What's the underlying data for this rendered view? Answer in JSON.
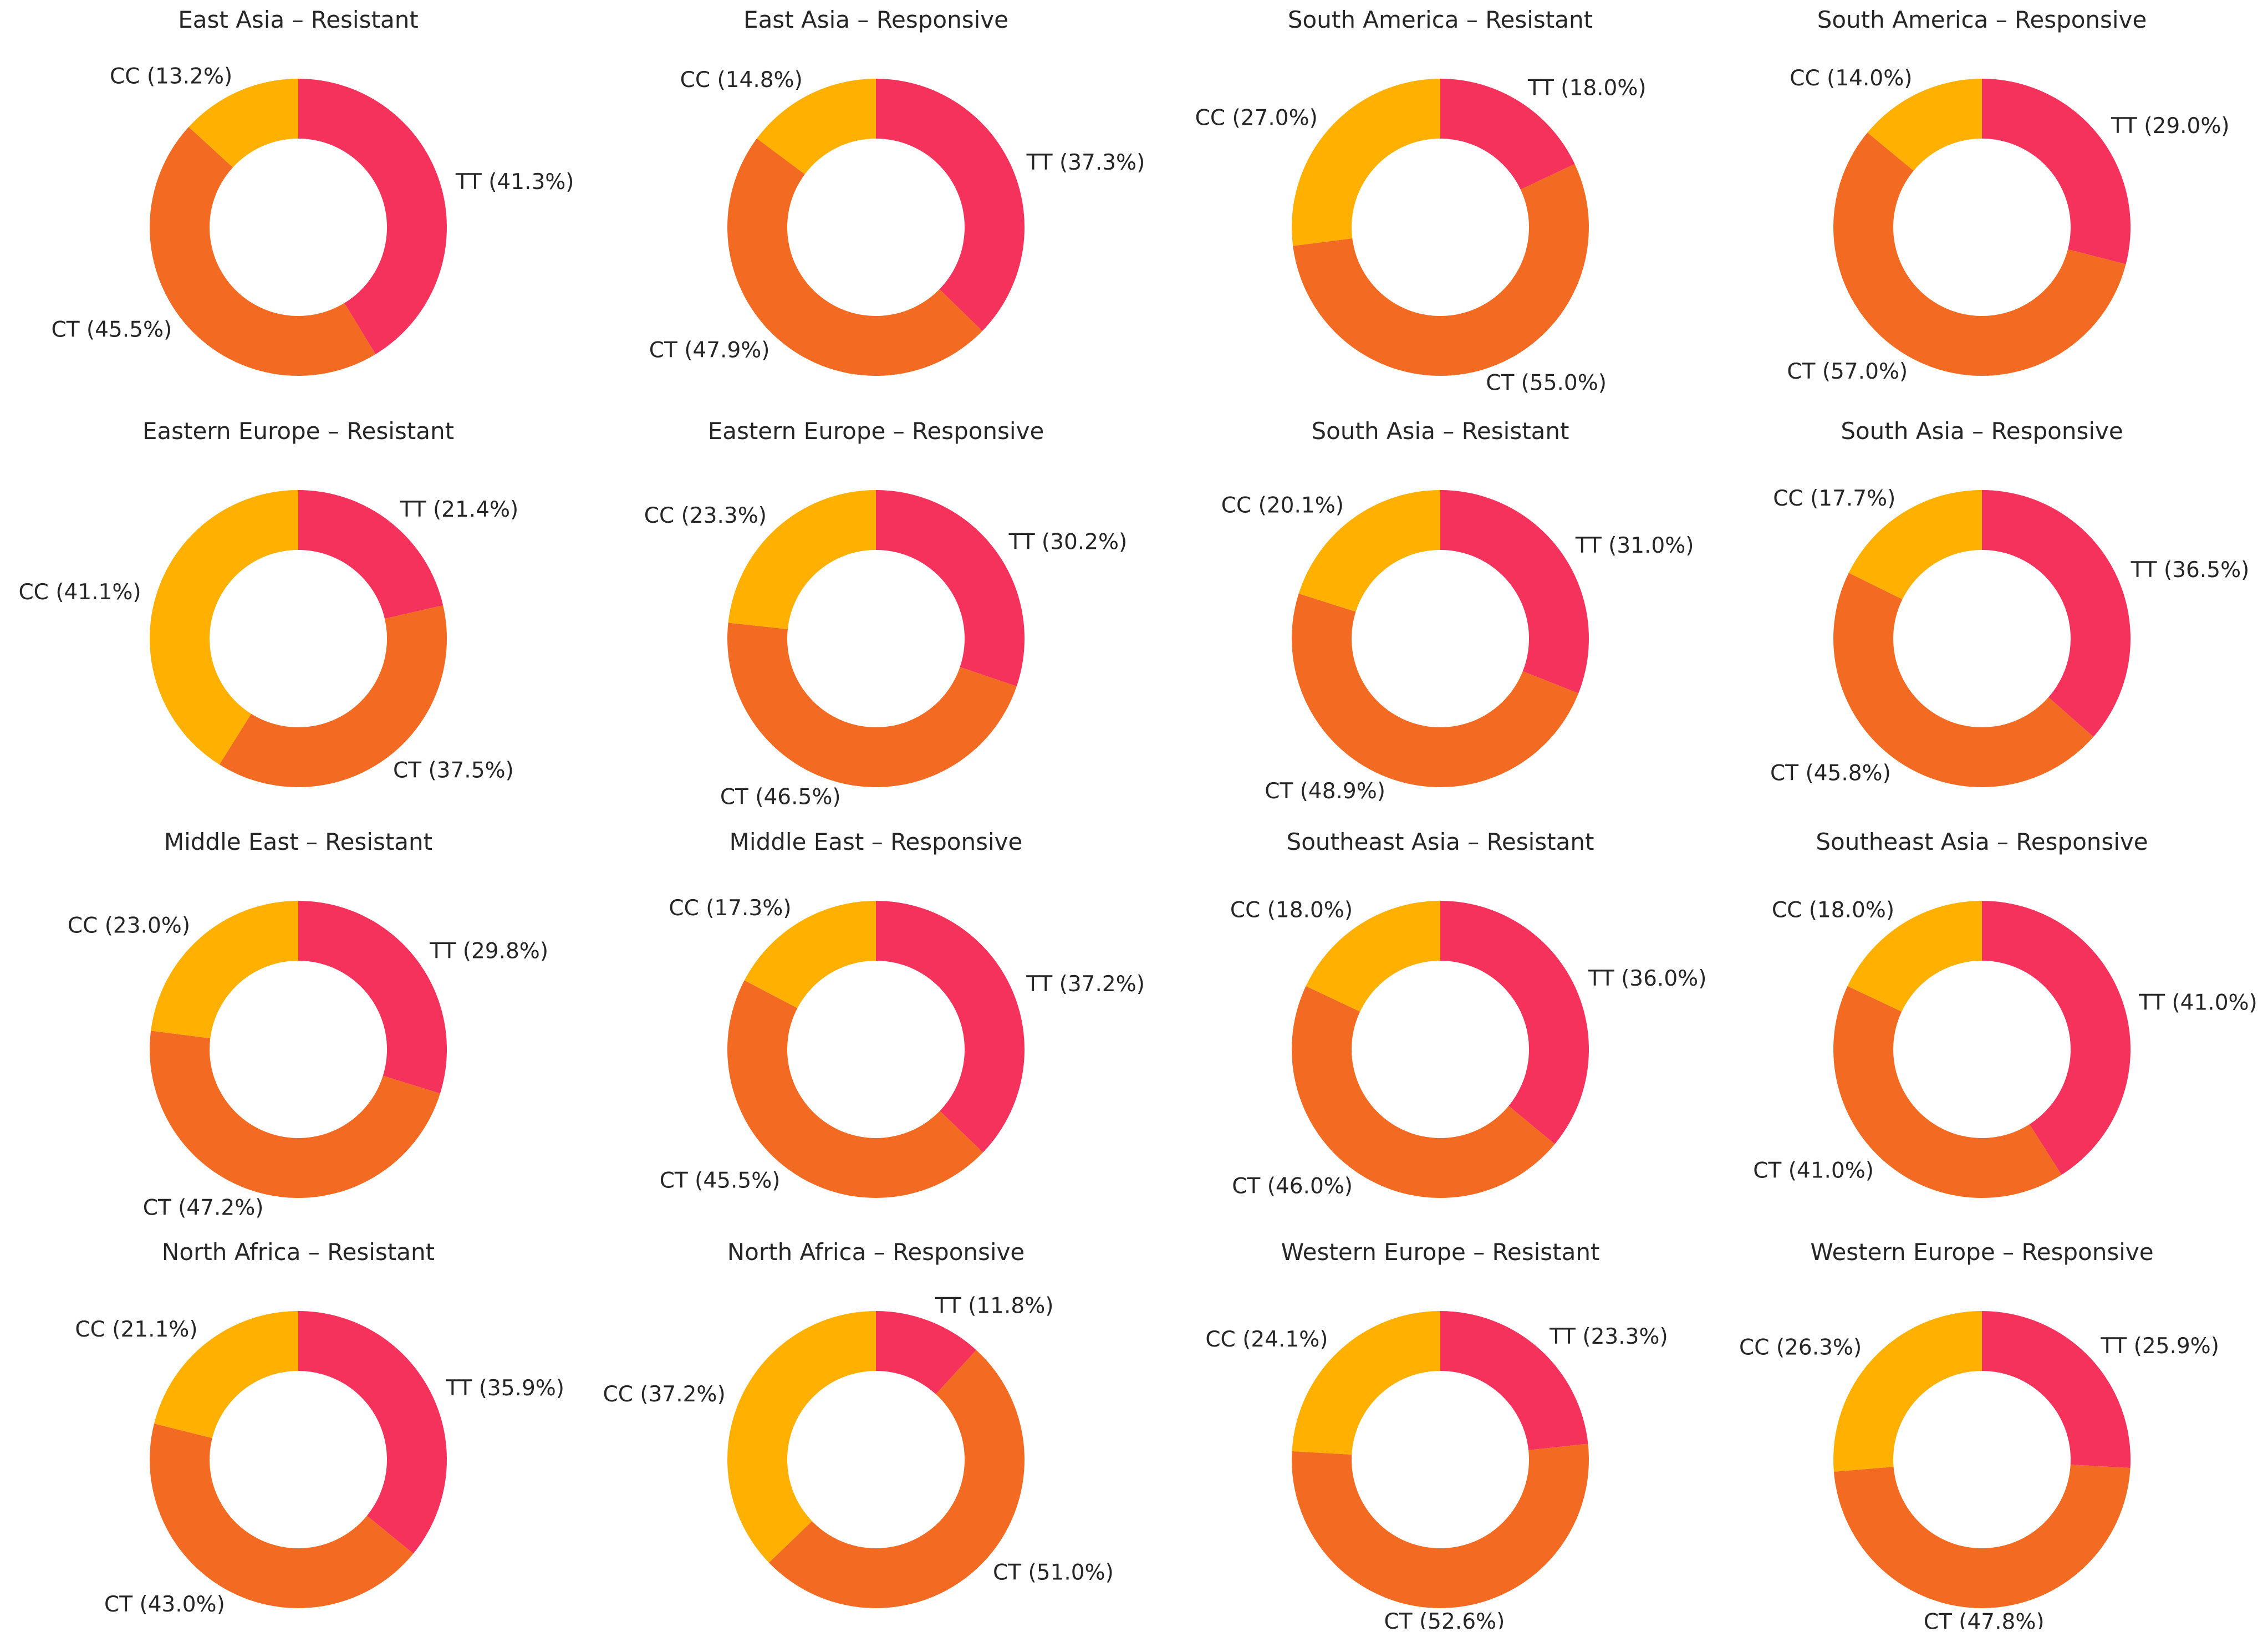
{
  "colors": {
    "TT": "#f5325b",
    "CT": "#f36b22",
    "CC": "#ffb000",
    "hole": "#ffffff"
  },
  "chart_data": [
    {
      "type": "pie",
      "title": "East Asia – Resistant",
      "categories": [
        "TT",
        "CT",
        "CC"
      ],
      "values": [
        41.3,
        45.5,
        13.2
      ],
      "labels": [
        "TT (41.3%)",
        "CT (45.5%)",
        "CC (13.2%)"
      ]
    },
    {
      "type": "pie",
      "title": "East Asia – Responsive",
      "categories": [
        "TT",
        "CT",
        "CC"
      ],
      "values": [
        37.3,
        47.9,
        14.8
      ],
      "labels": [
        "TT (37.3%)",
        "CT (47.9%)",
        "CC (14.8%)"
      ]
    },
    {
      "type": "pie",
      "title": "South America – Resistant",
      "categories": [
        "TT",
        "CT",
        "CC"
      ],
      "values": [
        18.0,
        55.0,
        27.0
      ],
      "labels": [
        "TT (18.0%)",
        "CT (55.0%)",
        "CC (27.0%)"
      ]
    },
    {
      "type": "pie",
      "title": "South America – Responsive",
      "categories": [
        "TT",
        "CT",
        "CC"
      ],
      "values": [
        29.0,
        57.0,
        14.0
      ],
      "labels": [
        "TT (29.0%)",
        "CT (57.0%)",
        "CC (14.0%)"
      ]
    },
    {
      "type": "pie",
      "title": "Eastern Europe – Resistant",
      "categories": [
        "TT",
        "CT",
        "CC"
      ],
      "values": [
        21.4,
        37.5,
        41.1
      ],
      "labels": [
        "TT (21.4%)",
        "CT (37.5%)",
        "CC (41.1%)"
      ]
    },
    {
      "type": "pie",
      "title": "Eastern Europe – Responsive",
      "categories": [
        "TT",
        "CT",
        "CC"
      ],
      "values": [
        30.2,
        46.5,
        23.3
      ],
      "labels": [
        "TT (30.2%)",
        "CT (46.5%)",
        "CC (23.3%)"
      ]
    },
    {
      "type": "pie",
      "title": "South Asia – Resistant",
      "categories": [
        "TT",
        "CT",
        "CC"
      ],
      "values": [
        31.0,
        48.9,
        20.1
      ],
      "labels": [
        "TT (31.0%)",
        "CT (48.9%)",
        "CC (20.1%)"
      ]
    },
    {
      "type": "pie",
      "title": "South Asia – Responsive",
      "categories": [
        "TT",
        "CT",
        "CC"
      ],
      "values": [
        36.5,
        45.8,
        17.7
      ],
      "labels": [
        "TT (36.5%)",
        "CT (45.8%)",
        "CC (17.7%)"
      ]
    },
    {
      "type": "pie",
      "title": "Middle East – Resistant",
      "categories": [
        "TT",
        "CT",
        "CC"
      ],
      "values": [
        29.8,
        47.2,
        23.0
      ],
      "labels": [
        "TT (29.8%)",
        "CT (47.2%)",
        "CC (23.0%)"
      ]
    },
    {
      "type": "pie",
      "title": "Middle East – Responsive",
      "categories": [
        "TT",
        "CT",
        "CC"
      ],
      "values": [
        37.2,
        45.5,
        17.3
      ],
      "labels": [
        "TT (37.2%)",
        "CT (45.5%)",
        "CC (17.3%)"
      ]
    },
    {
      "type": "pie",
      "title": "Southeast Asia – Resistant",
      "categories": [
        "TT",
        "CT",
        "CC"
      ],
      "values": [
        36.0,
        46.0,
        18.0
      ],
      "labels": [
        "TT (36.0%)",
        "CT (46.0%)",
        "CC (18.0%)"
      ]
    },
    {
      "type": "pie",
      "title": "Southeast Asia – Responsive",
      "categories": [
        "TT",
        "CT",
        "CC"
      ],
      "values": [
        41.0,
        41.0,
        18.0
      ],
      "labels": [
        "TT (41.0%)",
        "CT (41.0%)",
        "CC (18.0%)"
      ]
    },
    {
      "type": "pie",
      "title": "North Africa – Resistant",
      "categories": [
        "TT",
        "CT",
        "CC"
      ],
      "values": [
        35.9,
        43.0,
        21.1
      ],
      "labels": [
        "TT (35.9%)",
        "CT (43.0%)",
        "CC (21.1%)"
      ]
    },
    {
      "type": "pie",
      "title": "North Africa – Responsive",
      "categories": [
        "TT",
        "CT",
        "CC"
      ],
      "values": [
        11.8,
        51.0,
        37.2
      ],
      "labels": [
        "TT (11.8%)",
        "CT (51.0%)",
        "CC (37.2%)"
      ]
    },
    {
      "type": "pie",
      "title": "Western Europe – Resistant",
      "categories": [
        "TT",
        "CT",
        "CC"
      ],
      "values": [
        23.3,
        52.6,
        24.1
      ],
      "labels": [
        "TT (23.3%)",
        "CT (52.6%)",
        "CC (24.1%)"
      ]
    },
    {
      "type": "pie",
      "title": "Western Europe – Responsive",
      "categories": [
        "TT",
        "CT",
        "CC"
      ],
      "values": [
        25.9,
        47.8,
        26.3
      ],
      "labels": [
        "TT (25.9%)",
        "CT (47.8%)",
        "CC (26.3%)"
      ]
    }
  ]
}
